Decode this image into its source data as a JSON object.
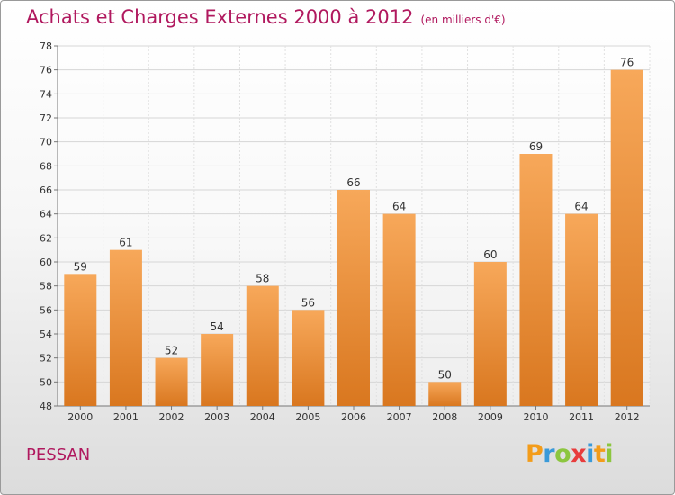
{
  "title": "Achats et Charges Externes 2000 à 2012",
  "unit_note": "(en milliers d'€)",
  "commune": "PESSAN",
  "logo": {
    "text": "Proxiti",
    "letters": [
      {
        "ch": "P",
        "color": "#f39c1a"
      },
      {
        "ch": "r",
        "color": "#3a9ad9"
      },
      {
        "ch": "o",
        "color": "#8cc63f"
      },
      {
        "ch": "x",
        "color": "#e83c3c"
      },
      {
        "ch": "i",
        "color": "#3a9ad9"
      },
      {
        "ch": "t",
        "color": "#f39c1a"
      },
      {
        "ch": "i",
        "color": "#8cc63f"
      }
    ]
  },
  "colors": {
    "title": "#b0185e",
    "bar_light": "#f7a85a",
    "bar_dark": "#d9771f"
  },
  "chart_data": {
    "type": "bar",
    "categories": [
      "2000",
      "2001",
      "2002",
      "2003",
      "2004",
      "2005",
      "2006",
      "2007",
      "2008",
      "2009",
      "2010",
      "2011",
      "2012"
    ],
    "values": [
      59,
      61,
      52,
      54,
      58,
      56,
      66,
      64,
      50,
      60,
      69,
      64,
      76
    ],
    "ylim": [
      48,
      78
    ],
    "yticks": [
      48,
      50,
      52,
      54,
      56,
      58,
      60,
      62,
      64,
      66,
      68,
      70,
      72,
      74,
      76,
      78
    ],
    "grid": true,
    "data_labels": true
  }
}
